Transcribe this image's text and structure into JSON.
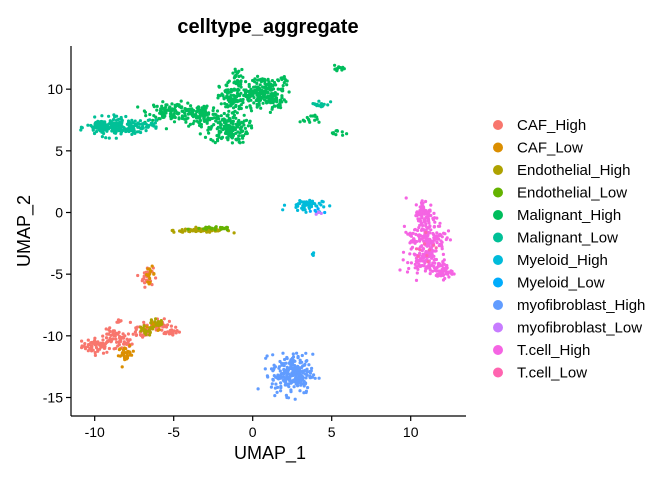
{
  "chart_data": {
    "type": "scatter",
    "title": "celltype_aggregate",
    "xlabel": "UMAP_1",
    "ylabel": "UMAP_2",
    "xlim": [
      -11.5,
      13.5
    ],
    "ylim": [
      -16.5,
      13.5
    ],
    "xticks": [
      -10,
      -5,
      0,
      5,
      10
    ],
    "yticks": [
      10,
      5,
      0,
      -5,
      -10,
      -15
    ],
    "grid": false,
    "legend_position": "right",
    "series": [
      {
        "name": "CAF_High",
        "color": "#F8766D",
        "clusters": [
          {
            "cx": -9.8,
            "cy": -10.8,
            "sx": 0.5,
            "sy": 0.3,
            "n": 60
          },
          {
            "cx": -8.8,
            "cy": -10.1,
            "sx": 0.4,
            "sy": 0.3,
            "n": 40
          },
          {
            "cx": -8.2,
            "cy": -10.6,
            "sx": 0.3,
            "sy": 0.3,
            "n": 25
          },
          {
            "cx": -7.0,
            "cy": -9.6,
            "sx": 0.4,
            "sy": 0.3,
            "n": 35
          },
          {
            "cx": -6.0,
            "cy": -9.2,
            "sx": 0.5,
            "sy": 0.25,
            "n": 45
          },
          {
            "cx": -5.2,
            "cy": -9.7,
            "sx": 0.2,
            "sy": 0.15,
            "n": 15
          },
          {
            "cx": -6.7,
            "cy": -5.2,
            "sx": 0.2,
            "sy": 0.4,
            "n": 25
          },
          {
            "cx": -8.5,
            "cy": -8.8,
            "sx": 0.1,
            "sy": 0.1,
            "n": 5
          }
        ]
      },
      {
        "name": "CAF_Low",
        "color": "#DB8E00",
        "clusters": [
          {
            "cx": -8.0,
            "cy": -11.5,
            "sx": 0.25,
            "sy": 0.3,
            "n": 30
          },
          {
            "cx": -6.5,
            "cy": -5.0,
            "sx": 0.15,
            "sy": 0.3,
            "n": 15
          },
          {
            "cx": -6.2,
            "cy": -9.2,
            "sx": 0.3,
            "sy": 0.2,
            "n": 10
          }
        ]
      },
      {
        "name": "Endothelial_High",
        "color": "#AEA200",
        "clusters": [
          {
            "cx": -3.2,
            "cy": -1.45,
            "sx": 0.9,
            "sy": 0.08,
            "n": 70
          },
          {
            "cx": -6.8,
            "cy": -9.6,
            "sx": 0.3,
            "sy": 0.2,
            "n": 20
          },
          {
            "cx": -6.0,
            "cy": -9.0,
            "sx": 0.3,
            "sy": 0.2,
            "n": 15
          }
        ]
      },
      {
        "name": "Endothelial_Low",
        "color": "#64B200",
        "clusters": [
          {
            "cx": -2.5,
            "cy": -1.3,
            "sx": 0.6,
            "sy": 0.06,
            "n": 30
          }
        ]
      },
      {
        "name": "Malignant_High",
        "color": "#00BD5C",
        "clusters": [
          {
            "cx": -5.0,
            "cy": 8.2,
            "sx": 0.8,
            "sy": 0.35,
            "n": 120
          },
          {
            "cx": -3.2,
            "cy": 7.8,
            "sx": 0.6,
            "sy": 0.5,
            "n": 100
          },
          {
            "cx": -1.5,
            "cy": 6.8,
            "sx": 0.6,
            "sy": 0.6,
            "n": 160
          },
          {
            "cx": -1.3,
            "cy": 9.2,
            "sx": 0.4,
            "sy": 0.7,
            "n": 90
          },
          {
            "cx": 0.2,
            "cy": 9.5,
            "sx": 0.6,
            "sy": 0.4,
            "n": 120
          },
          {
            "cx": 1.0,
            "cy": 10.2,
            "sx": 0.5,
            "sy": 0.4,
            "n": 70
          },
          {
            "cx": 1.5,
            "cy": 9.0,
            "sx": 0.3,
            "sy": 0.3,
            "n": 40
          },
          {
            "cx": -1.0,
            "cy": 10.8,
            "sx": 0.2,
            "sy": 0.6,
            "n": 30
          },
          {
            "cx": 3.6,
            "cy": 7.6,
            "sx": 0.3,
            "sy": 0.2,
            "n": 15
          },
          {
            "cx": 5.4,
            "cy": 11.6,
            "sx": 0.2,
            "sy": 0.15,
            "n": 12
          },
          {
            "cx": 5.4,
            "cy": 6.5,
            "sx": 0.2,
            "sy": 0.15,
            "n": 10
          },
          {
            "cx": 2.0,
            "cy": 10.6,
            "sx": 0.2,
            "sy": 0.3,
            "n": 10
          }
        ]
      },
      {
        "name": "Malignant_Low",
        "color": "#00C097",
        "clusters": [
          {
            "cx": -9.3,
            "cy": 6.9,
            "sx": 0.6,
            "sy": 0.35,
            "n": 130
          },
          {
            "cx": -7.7,
            "cy": 7.0,
            "sx": 0.7,
            "sy": 0.3,
            "n": 90
          },
          {
            "cx": -6.5,
            "cy": 7.2,
            "sx": 0.2,
            "sy": 0.2,
            "n": 10
          },
          {
            "cx": 4.3,
            "cy": 8.8,
            "sx": 0.3,
            "sy": 0.15,
            "n": 15
          }
        ]
      },
      {
        "name": "Myeloid_High",
        "color": "#00BBDA",
        "clusters": [
          {
            "cx": 3.3,
            "cy": 0.6,
            "sx": 0.55,
            "sy": 0.25,
            "n": 50
          },
          {
            "cx": 3.8,
            "cy": -3.4,
            "sx": 0.05,
            "sy": 0.1,
            "n": 4
          }
        ]
      },
      {
        "name": "Myeloid_Low",
        "color": "#00ACFC",
        "clusters": [
          {
            "cx": 4.0,
            "cy": 0.1,
            "sx": 0.2,
            "sy": 0.1,
            "n": 6
          }
        ]
      },
      {
        "name": "myofibroblast_High",
        "color": "#619CFF",
        "clusters": [
          {
            "cx": 2.5,
            "cy": -13.1,
            "sx": 0.65,
            "sy": 0.8,
            "n": 240
          }
        ]
      },
      {
        "name": "myofibroblast_Low",
        "color": "#C77CFF",
        "clusters": [
          {
            "cx": 4.2,
            "cy": -0.1,
            "sx": 0.1,
            "sy": 0.1,
            "n": 4
          }
        ]
      },
      {
        "name": "T.cell_High",
        "color": "#F564E3",
        "clusters": [
          {
            "cx": 10.9,
            "cy": -0.3,
            "sx": 0.35,
            "sy": 0.7,
            "n": 90
          },
          {
            "cx": 11.2,
            "cy": -2.2,
            "sx": 0.5,
            "sy": 0.7,
            "n": 110
          },
          {
            "cx": 11.0,
            "cy": -4.0,
            "sx": 0.6,
            "sy": 0.5,
            "n": 100
          },
          {
            "cx": 12.0,
            "cy": -4.8,
            "sx": 0.3,
            "sy": 0.3,
            "n": 40
          },
          {
            "cx": 10.0,
            "cy": -2.2,
            "sx": 0.2,
            "sy": 0.3,
            "n": 20
          }
        ]
      },
      {
        "name": "T.cell_Low",
        "color": "#FF64B0",
        "clusters": [
          {
            "cx": 11.2,
            "cy": -3.0,
            "sx": 0.4,
            "sy": 0.6,
            "n": 10
          }
        ]
      }
    ]
  }
}
